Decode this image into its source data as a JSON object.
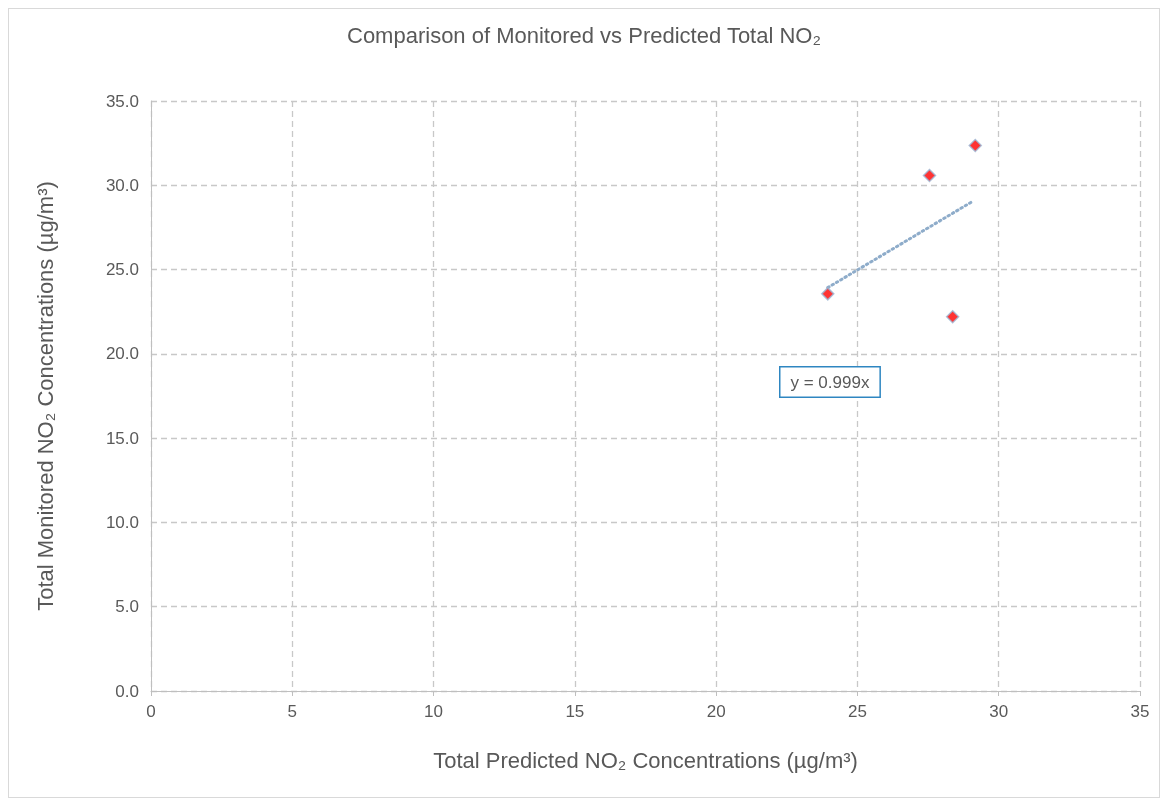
{
  "chart_data": {
    "type": "scatter",
    "title": "Comparison of Monitored vs Predicted Total NO₂",
    "xlabel": "Total Predicted NO₂ Concentrations (µg/m³)",
    "ylabel": "Total Monitored NO₂ Concentrations (µg/m³)",
    "x": [
      29.17,
      27.55,
      28.37,
      23.95
    ],
    "series": [
      {
        "color": "#ff0000",
        "marker": "diamond",
        "values": [
          32.36,
          30.58,
          22.2,
          23.56
        ]
      },
      {
        "type": "line",
        "color": "#8eacca",
        "line_style": "dotted",
        "marker": "none",
        "x": [
          23.95,
          29.05
        ],
        "values": [
          23.93,
          29.02
        ]
      }
    ],
    "annotations": [
      "y = 0.999x"
    ],
    "xlim": [
      0,
      35
    ],
    "xticks": [
      0,
      5,
      10,
      15,
      20,
      25,
      30,
      35
    ],
    "ylim": [
      0,
      35
    ],
    "yticks": [
      {
        "value": 0,
        "label": "0.0"
      },
      {
        "value": 5,
        "label": "5.0"
      },
      {
        "value": 10,
        "label": "10.0"
      },
      {
        "value": 15,
        "label": "15.0"
      },
      {
        "value": 20,
        "label": "20.0"
      },
      {
        "value": 25,
        "label": "25.0"
      },
      {
        "value": 30,
        "label": "30.0"
      },
      {
        "value": 35,
        "label": "35.0"
      }
    ],
    "grid": true
  }
}
